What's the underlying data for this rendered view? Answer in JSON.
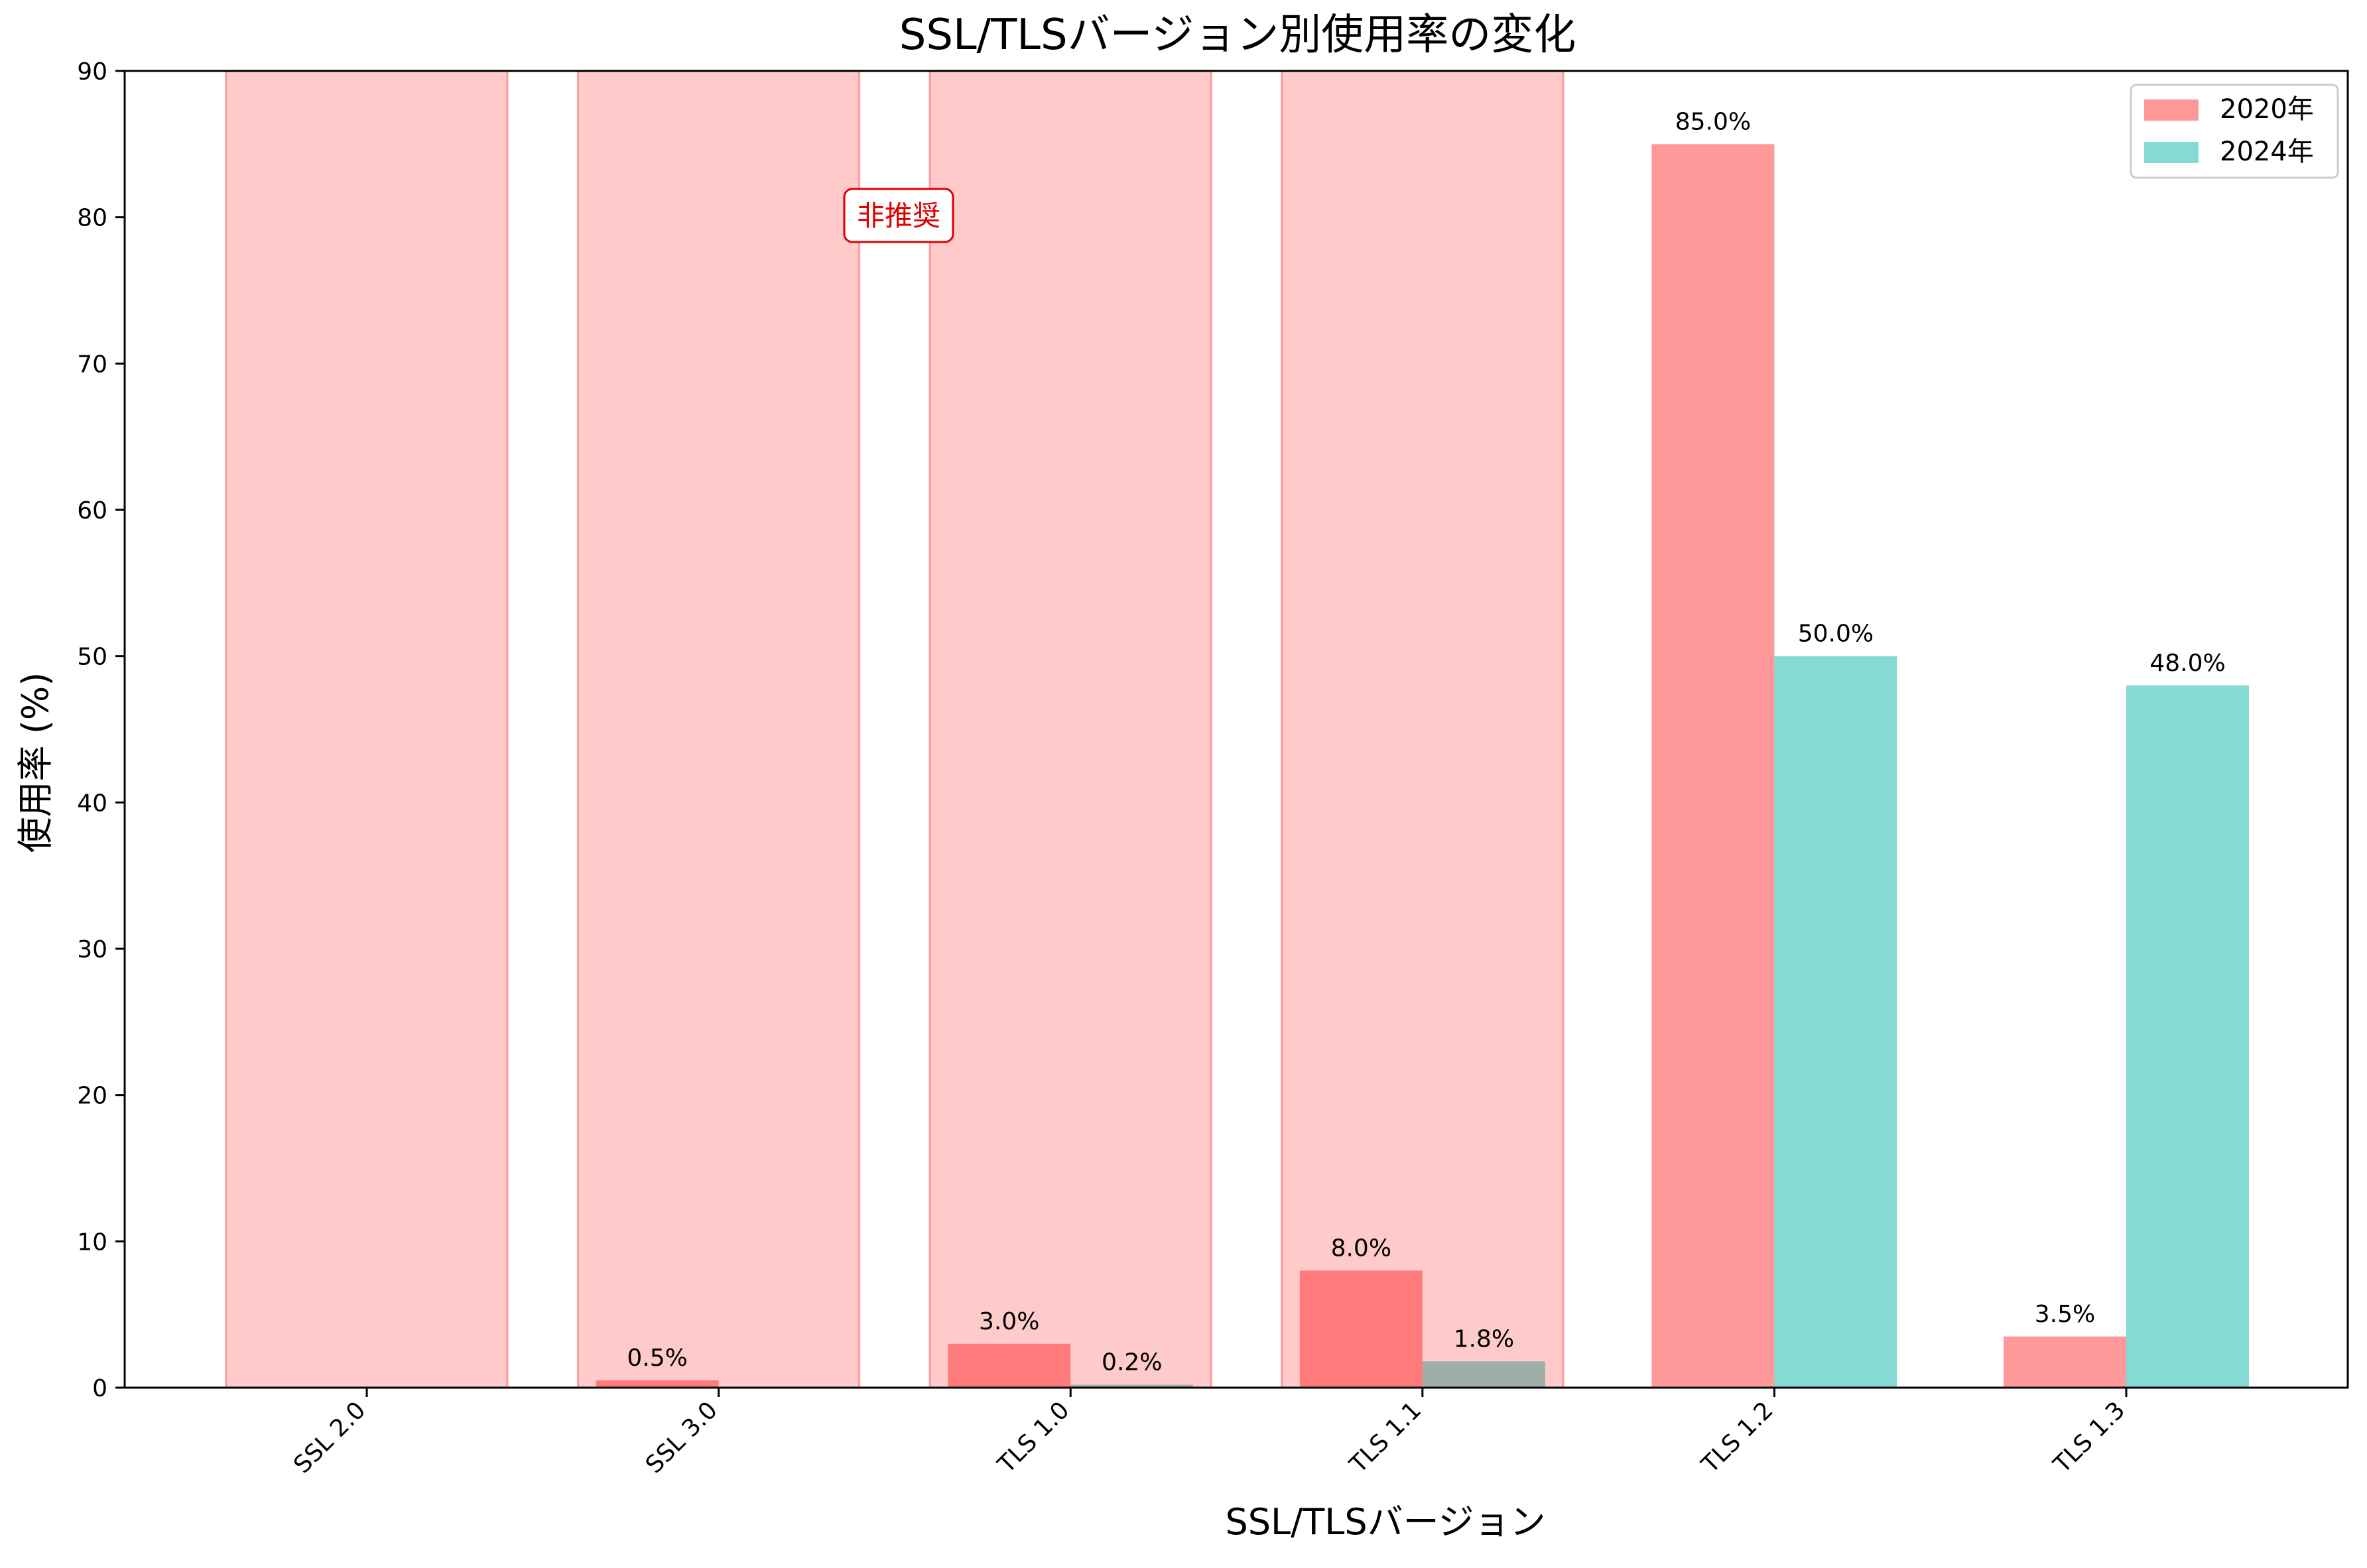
{
  "chart_data": {
    "type": "bar",
    "title": "SSL/TLSバージョン別使用率の変化",
    "xlabel": "SSL/TLSバージョン",
    "ylabel": "使用率 (%)",
    "ylim": [
      0,
      90
    ],
    "yticks": [
      0,
      10,
      20,
      30,
      40,
      50,
      60,
      70,
      80,
      90
    ],
    "categories": [
      "SSL 2.0",
      "SSL 3.0",
      "TLS 1.0",
      "TLS 1.1",
      "TLS 1.2",
      "TLS 1.3"
    ],
    "series": [
      {
        "name": "2020年",
        "values": [
          0,
          0.5,
          3.0,
          8.0,
          85.0,
          3.5
        ],
        "labels": [
          "",
          "0.5%",
          "3.0%",
          "8.0%",
          "85.0%",
          "3.5%"
        ],
        "color": "#ff9999",
        "deprecated_color": "#ff7b7b"
      },
      {
        "name": "2024年",
        "values": [
          0,
          0,
          0.2,
          1.8,
          50.0,
          48.0
        ],
        "labels": [
          "",
          "",
          "0.2%",
          "1.8%",
          "50.0%",
          "48.0%"
        ],
        "color": "#83dbd4",
        "deprecated_color": "#9eaea9"
      }
    ],
    "deprecated": {
      "categories": [
        "SSL 2.0",
        "SSL 3.0",
        "TLS 1.0",
        "TLS 1.1"
      ],
      "color": "#ffb3b3",
      "label": "非推奨"
    },
    "legend": {
      "position": "top-right",
      "entries": [
        "2020年",
        "2024年"
      ]
    },
    "grid": false
  }
}
